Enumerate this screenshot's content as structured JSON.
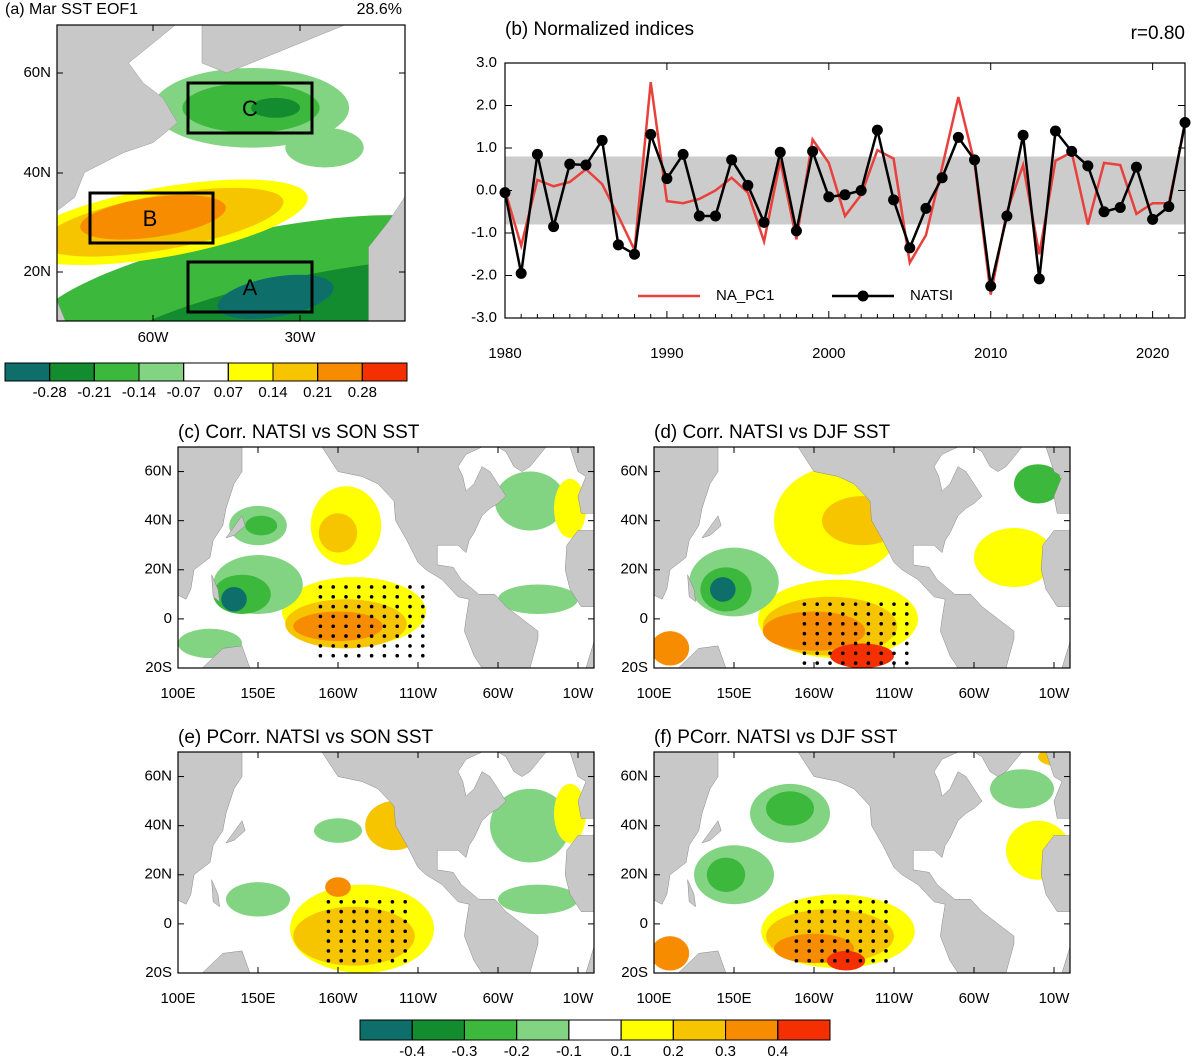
{
  "chart_data": {
    "type": "line",
    "title": "(b) Normalized indices",
    "annotation": "r=0.80",
    "x": [
      1980,
      1981,
      1982,
      1983,
      1984,
      1985,
      1986,
      1987,
      1988,
      1989,
      1990,
      1991,
      1992,
      1993,
      1994,
      1995,
      1996,
      1997,
      1998,
      1999,
      2000,
      2001,
      2002,
      2003,
      2004,
      2005,
      2006,
      2007,
      2008,
      2009,
      2010,
      2011,
      2012,
      2013,
      2014,
      2015,
      2016,
      2017,
      2018,
      2019,
      2020,
      2021,
      2022
    ],
    "series": [
      {
        "name": "NA_PC1",
        "color": "#e8413c",
        "marker": false,
        "values": [
          0.0,
          -1.3,
          0.25,
          0.1,
          0.2,
          0.5,
          0.15,
          -0.6,
          -1.4,
          2.55,
          -0.25,
          -0.3,
          -0.2,
          0.0,
          0.3,
          -0.05,
          -1.2,
          0.7,
          -1.15,
          1.2,
          0.65,
          -0.6,
          -0.1,
          0.95,
          0.75,
          -1.7,
          -1.05,
          0.55,
          2.2,
          0.65,
          -2.45,
          -0.5,
          0.6,
          -1.5,
          0.7,
          0.9,
          -0.8,
          0.65,
          0.6,
          -0.55,
          -0.3,
          -0.3,
          1.55
        ]
      },
      {
        "name": "NATSI",
        "color": "#000000",
        "marker": true,
        "values": [
          -0.05,
          -1.95,
          0.85,
          -0.85,
          0.62,
          0.6,
          1.18,
          -1.28,
          -1.5,
          1.32,
          0.28,
          0.85,
          -0.6,
          -0.6,
          0.72,
          0.12,
          -0.75,
          0.9,
          -0.95,
          0.92,
          -0.15,
          -0.1,
          0.0,
          1.42,
          -0.22,
          -1.35,
          -0.42,
          0.3,
          1.25,
          0.72,
          -2.25,
          -0.6,
          1.3,
          -2.08,
          1.4,
          0.92,
          0.58,
          -0.5,
          -0.4,
          0.55,
          -0.68,
          -0.38,
          1.6
        ]
      }
    ],
    "band": [
      -0.8,
      0.8
    ],
    "band_color": "#cccccc",
    "xlim": [
      1980,
      2022
    ],
    "xticks": [
      1980,
      1990,
      2000,
      2010,
      2020
    ],
    "ylim": [
      -3,
      3
    ],
    "yticks": [
      {
        "value": -3,
        "label": "-3.0"
      },
      {
        "value": -2,
        "label": "-2.0"
      },
      {
        "value": -1,
        "label": "-1.0"
      },
      {
        "value": 0,
        "label": "0.0"
      },
      {
        "value": 1,
        "label": "1.0"
      },
      {
        "value": 2,
        "label": "2.0"
      },
      {
        "value": 3,
        "label": "3.0"
      }
    ],
    "legend": "bottom"
  },
  "panel_a": {
    "title": "(a) Mar SST EOF1",
    "variance": "28.6%",
    "boxes": [
      "A",
      "B",
      "C"
    ],
    "lat_labels": [
      "60N",
      "40N",
      "20N"
    ],
    "lon_labels": [
      "60W",
      "30W"
    ]
  },
  "maps": [
    {
      "title": "(c) Corr. NATSI vs SON SST"
    },
    {
      "title": "(d) Corr. NATSI vs DJF SST"
    },
    {
      "title": "(e) PCorr. NATSI vs SON SST"
    },
    {
      "title": "(f) PCorr. NATSI vs DJF SST"
    }
  ],
  "map_axes": {
    "lat_labels": [
      "60N",
      "40N",
      "20N",
      "0",
      "20S"
    ],
    "lon_labels": [
      "100E",
      "150E",
      "160W",
      "110W",
      "60W",
      "10W"
    ]
  },
  "colorbar_a": {
    "levels": [
      -0.28,
      -0.21,
      -0.14,
      -0.07,
      0.07,
      0.14,
      0.21,
      0.28
    ],
    "colors": [
      "#0e6f6a",
      "#128c2e",
      "#3cb83c",
      "#82d482",
      "#ffffff",
      "#ffff00",
      "#f7c400",
      "#f78c00",
      "#f53000"
    ]
  },
  "colorbar_b": {
    "levels": [
      -0.4,
      -0.3,
      -0.2,
      -0.1,
      0.1,
      0.2,
      0.3,
      0.4
    ],
    "colors": [
      "#0e6f6a",
      "#128c2e",
      "#3cb83c",
      "#82d482",
      "#ffffff",
      "#ffff00",
      "#f7c400",
      "#f78c00",
      "#f53000"
    ]
  }
}
